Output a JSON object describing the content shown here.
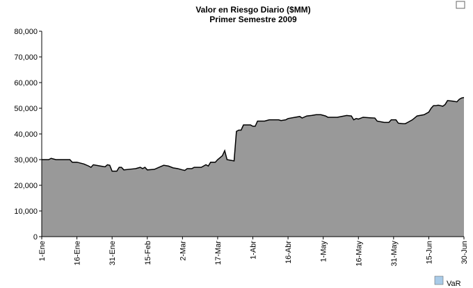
{
  "chart_data": {
    "type": "area",
    "title": "Valor en Riesgo Diario ($MM)",
    "subtitle": "Primer Semestre 2009",
    "series": [
      {
        "name": "VaR",
        "color": "#999999",
        "legend_color": "#a9cbe8",
        "x": [
          0,
          3,
          4,
          6,
          12,
          13,
          15,
          18,
          20,
          21,
          22,
          25,
          27,
          28,
          29,
          30,
          32,
          33,
          34,
          35,
          38,
          40,
          42,
          43,
          44,
          45,
          48,
          50,
          52,
          54,
          56,
          58,
          60,
          61,
          62,
          64,
          65,
          68,
          70,
          71,
          72,
          74,
          75,
          77,
          78,
          79,
          82,
          83,
          84,
          85,
          86,
          89,
          90,
          91,
          92,
          95,
          97,
          101,
          102,
          104,
          105,
          108,
          110,
          111,
          113,
          115,
          117,
          119,
          121,
          122,
          126,
          130,
          132,
          133,
          134,
          135,
          137,
          140,
          142,
          143,
          146,
          148,
          149,
          151,
          152,
          154,
          155,
          156,
          158,
          160,
          163,
          165,
          166,
          167,
          168,
          169,
          171,
          172,
          173,
          175,
          177,
          178,
          179,
          180
        ],
        "values": [
          30000,
          30000,
          30500,
          30000,
          30000,
          29000,
          29000,
          28300,
          27500,
          27000,
          28000,
          27500,
          27200,
          28000,
          27800,
          25500,
          25500,
          27000,
          27000,
          26000,
          26300,
          26500,
          27000,
          26500,
          27000,
          26000,
          26200,
          27000,
          27800,
          27500,
          26800,
          26500,
          26000,
          25800,
          26500,
          26500,
          27000,
          27000,
          28000,
          27500,
          29000,
          29000,
          30000,
          31500,
          33500,
          30000,
          29500,
          41000,
          41500,
          41500,
          43500,
          43500,
          43000,
          43000,
          45000,
          45000,
          45500,
          45500,
          45200,
          45500,
          46000,
          46500,
          46800,
          46200,
          47000,
          47200,
          47500,
          47500,
          47000,
          46500,
          46500,
          47200,
          47000,
          45500,
          46000,
          45800,
          46500,
          46300,
          46200,
          45000,
          44500,
          44500,
          45500,
          45500,
          44200,
          44000,
          44000,
          44500,
          45500,
          47000,
          47500,
          48500,
          50000,
          51000,
          51000,
          51200,
          50800,
          51500,
          53000,
          52800,
          52500,
          53500,
          54000,
          54200
        ]
      }
    ],
    "xlim": [
      0,
      180
    ],
    "xticks": [
      {
        "value": 0,
        "label": "1-Ene"
      },
      {
        "value": 15,
        "label": "16-Ene"
      },
      {
        "value": 30,
        "label": "31-Ene"
      },
      {
        "value": 45,
        "label": "15-Feb"
      },
      {
        "value": 60,
        "label": "2-Mar"
      },
      {
        "value": 75,
        "label": "17-Mar"
      },
      {
        "value": 90,
        "label": "1-Abr"
      },
      {
        "value": 105,
        "label": "16-Abr"
      },
      {
        "value": 120,
        "label": "1-May"
      },
      {
        "value": 135,
        "label": "16-May"
      },
      {
        "value": 150,
        "label": "31-May"
      },
      {
        "value": 165,
        "label": "15-Jun"
      },
      {
        "value": 180,
        "label": "30-Jun"
      }
    ],
    "ylim": [
      0,
      80000
    ],
    "yticks": [
      0,
      {
        "value": 10000,
        "label": "10,000"
      },
      {
        "value": 20000,
        "label": "20,000"
      },
      {
        "value": 30000,
        "label": "30,000"
      },
      {
        "value": 40000,
        "label": "40,000"
      },
      {
        "value": 50000,
        "label": "50,000"
      },
      {
        "value": 60000,
        "label": "60,000"
      },
      {
        "value": 70000,
        "label": "70,000"
      },
      {
        "value": 80000,
        "label": "80,000"
      }
    ],
    "grid": false
  }
}
